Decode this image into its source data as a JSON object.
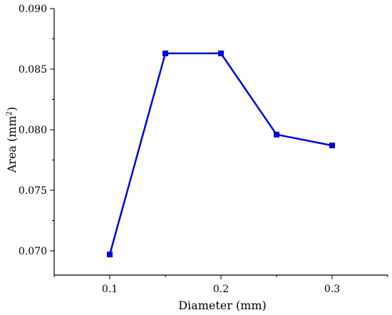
{
  "chart_data": {
    "type": "line",
    "x": [
      0.1,
      0.15,
      0.2,
      0.25,
      0.3
    ],
    "series": [
      {
        "values": [
          0.0697,
          0.0863,
          0.0863,
          0.0796,
          0.0787
        ],
        "color": "#0000dd",
        "marker": "square"
      }
    ],
    "xlabel": "Diameter (mm)",
    "ylabel_text": "Area (mm",
    "ylabel_sup": "2",
    "ylabel_close": ")",
    "xlim": [
      0.05,
      0.35
    ],
    "ylim": [
      0.068,
      0.09
    ],
    "x_ticks": [
      0.1,
      0.2,
      0.3
    ],
    "x_tick_labels": [
      "0.1",
      "0.2",
      "0.3"
    ],
    "y_ticks": [
      0.07,
      0.075,
      0.08,
      0.085,
      0.09
    ],
    "y_tick_labels": [
      "0.070",
      "0.075",
      "0.080",
      "0.085",
      "0.090"
    ],
    "grid": false,
    "legend": "none"
  }
}
